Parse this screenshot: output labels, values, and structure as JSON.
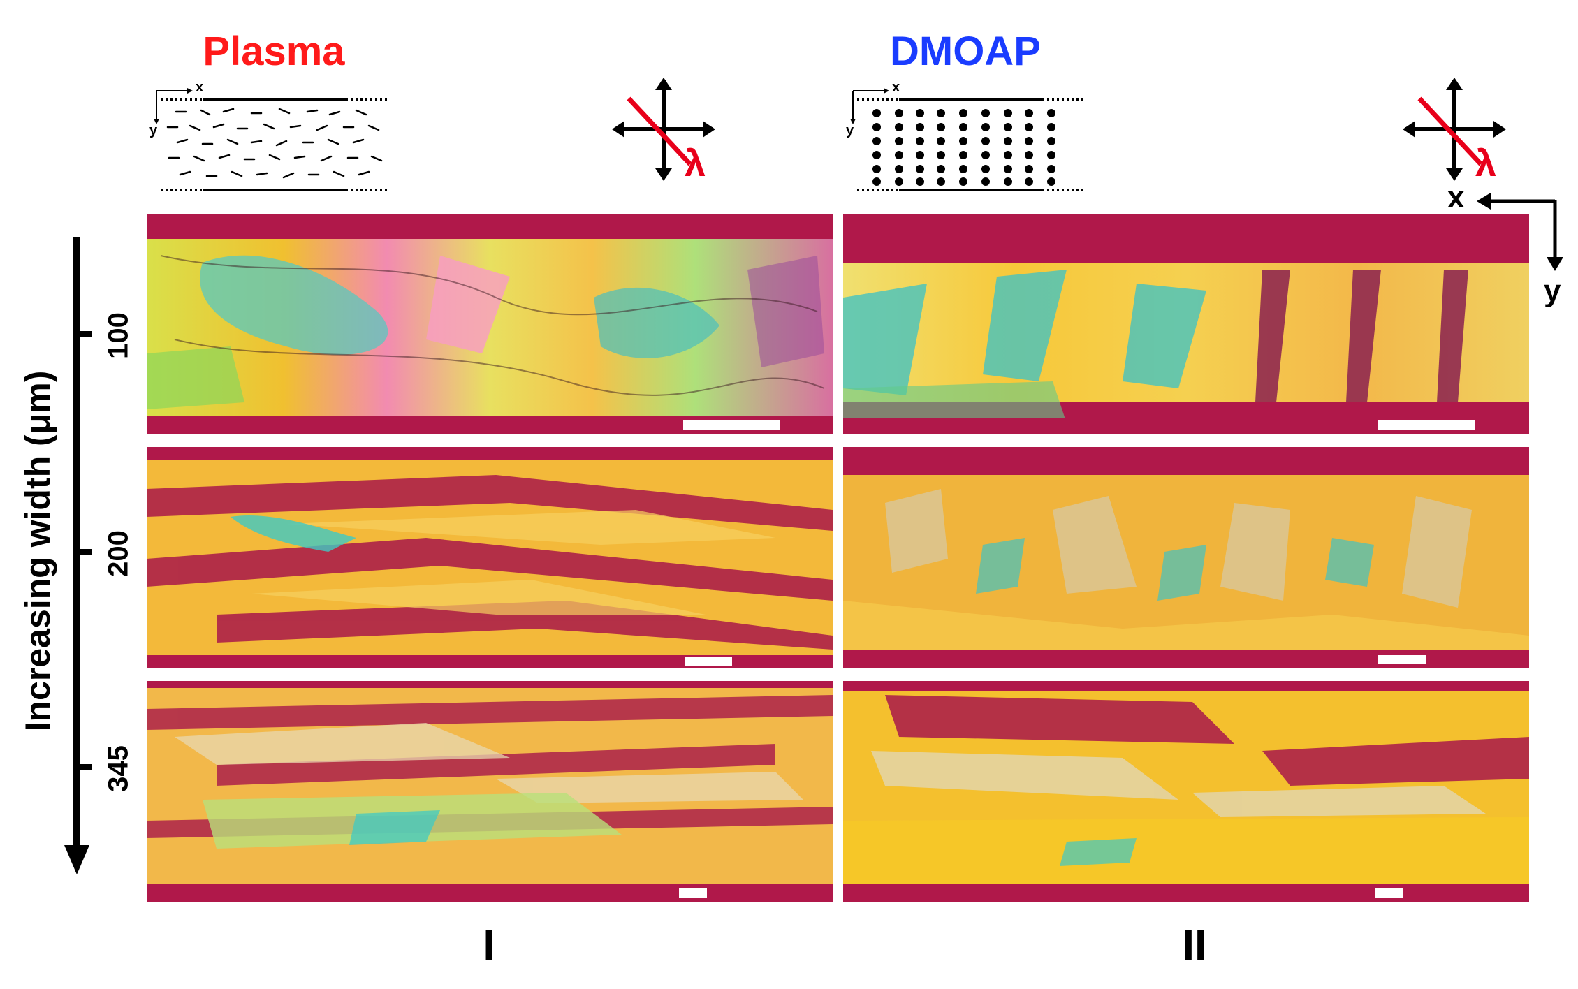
{
  "columns": [
    {
      "title": "Plasma",
      "title_color": "#ff1a1a",
      "roman": "I"
    },
    {
      "title": "DMOAP",
      "title_color": "#1a3cff",
      "roman": "II"
    }
  ],
  "schematic": {
    "plasma": {
      "x_label": "x",
      "y_label": "y"
    },
    "dmoap": {
      "x_label": "x",
      "y_label": "y"
    }
  },
  "polarizer_icon": {
    "lambda": "λ",
    "lambda_color": "#e8001a"
  },
  "axes_indicator": {
    "x_label": "x",
    "y_label": "y"
  },
  "y_axis": {
    "title": "Increasing width (μm)",
    "ticks": [
      "100",
      "200",
      "345"
    ]
  },
  "colors": {
    "panel_base": "#b0184a",
    "accent_yellow": "#f6c21d",
    "accent_cyan": "#3fc9c4"
  }
}
